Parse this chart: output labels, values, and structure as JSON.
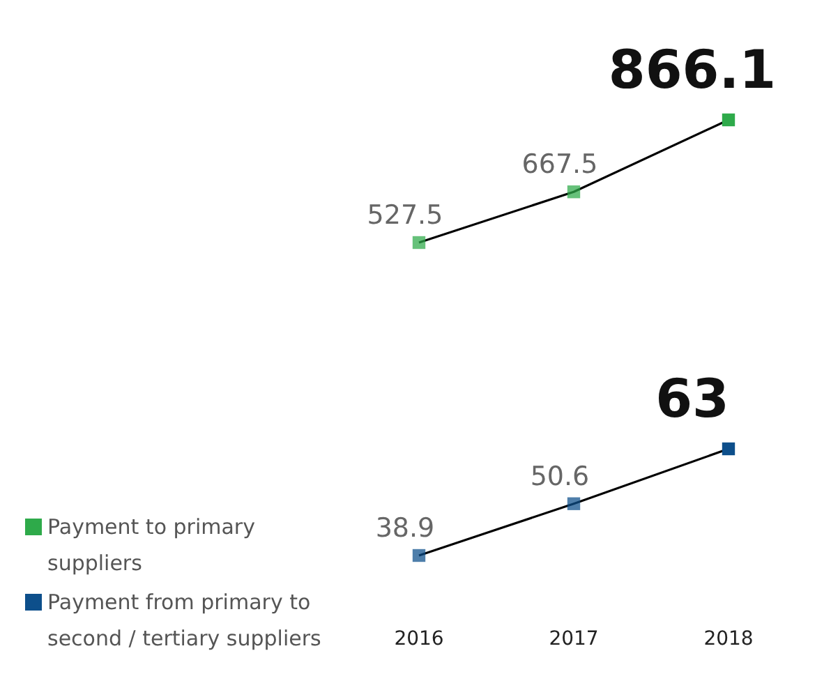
{
  "chart_data": [
    {
      "type": "line",
      "categories": [
        "2016",
        "2017",
        "2018"
      ],
      "series": [
        {
          "name": "Payment to primary suppliers",
          "color": "#2eaa4a",
          "values": [
            527.5,
            667.5,
            866.1
          ],
          "value_labels": [
            "527.5",
            "667.5",
            "866.1"
          ]
        }
      ],
      "tick_labels": false,
      "grid": false,
      "legend": "bottom left",
      "marker": "square",
      "line_style": "solid"
    },
    {
      "type": "line",
      "categories": [
        "2016",
        "2017",
        "2018"
      ],
      "series": [
        {
          "name": "Payment from primary to second / tertiary suppliers",
          "color": "#0d4f8b",
          "values": [
            38.9,
            50.6,
            63
          ],
          "value_labels": [
            "38.9",
            "50.6",
            "63"
          ]
        }
      ],
      "tick_labels": "x",
      "grid": false,
      "legend": "bottom left",
      "marker": "square",
      "line_style": "solid"
    }
  ]
}
